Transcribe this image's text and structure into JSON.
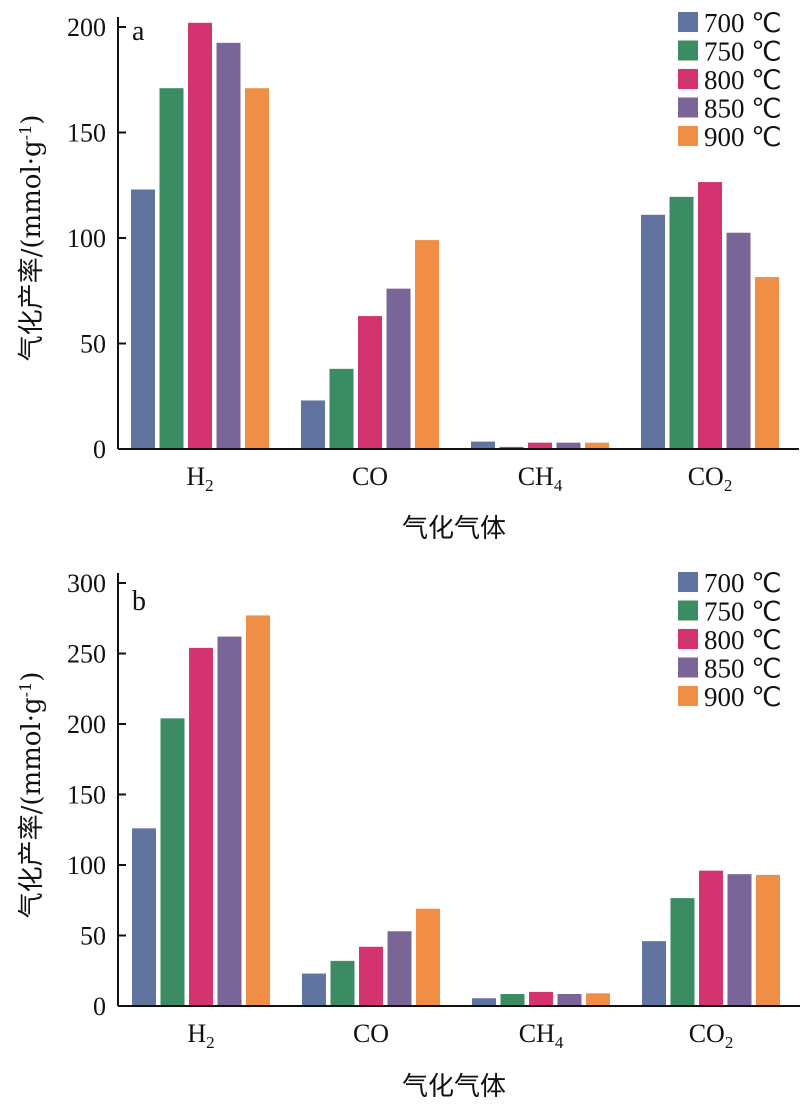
{
  "colors": {
    "700": "#61739f",
    "750": "#3b8c63",
    "800": "#d3346f",
    "850": "#7a6598",
    "900": "#ef8e44"
  },
  "chart_data": [
    {
      "type": "bar",
      "panel_label": "a",
      "categories": [
        "H2",
        "CO",
        "CH4",
        "CO2"
      ],
      "category_labels": [
        {
          "base": "H",
          "sub": "2"
        },
        {
          "base": "CO",
          "sub": ""
        },
        {
          "base": "CH",
          "sub": "4"
        },
        {
          "base": "CO",
          "sub": "2"
        }
      ],
      "series": [
        {
          "name": "700 ℃",
          "values": [
            123,
            23,
            3.5,
            111
          ]
        },
        {
          "name": "750 ℃",
          "values": [
            171,
            38,
            1,
            119.5
          ]
        },
        {
          "name": "800 ℃",
          "values": [
            202,
            63,
            3,
            126.5
          ]
        },
        {
          "name": "850 ℃",
          "values": [
            192.5,
            76,
            3,
            102.5
          ]
        },
        {
          "name": "900 ℃",
          "values": [
            171,
            99,
            3,
            81.5
          ]
        }
      ],
      "ylim": [
        0,
        200
      ],
      "yticks": [
        "0",
        "50",
        "100",
        "150",
        "200"
      ],
      "ytick_values": [
        0,
        50,
        100,
        150,
        200
      ],
      "ylabel_main": "气化产率/(mmol·g",
      "ylabel_sup": "-1",
      "ylabel_end": ")",
      "xlabel": "气化气体",
      "legend_position": "top-right",
      "grid": false
    },
    {
      "type": "bar",
      "panel_label": "b",
      "categories": [
        "H2",
        "CO",
        "CH4",
        "CO2"
      ],
      "category_labels": [
        {
          "base": "H",
          "sub": "2"
        },
        {
          "base": "CO",
          "sub": ""
        },
        {
          "base": "CH",
          "sub": "4"
        },
        {
          "base": "CO",
          "sub": "2"
        }
      ],
      "series": [
        {
          "name": "700 ℃",
          "values": [
            126,
            23,
            5.5,
            46
          ]
        },
        {
          "name": "750 ℃",
          "values": [
            204,
            32,
            8.5,
            76.5
          ]
        },
        {
          "name": "800 ℃",
          "values": [
            254,
            42,
            10,
            96
          ]
        },
        {
          "name": "850 ℃",
          "values": [
            262,
            53,
            8.5,
            93.5
          ]
        },
        {
          "name": "900 ℃",
          "values": [
            277,
            69,
            9,
            93
          ]
        }
      ],
      "ylim": [
        0,
        300
      ],
      "yticks": [
        "0",
        "50",
        "100",
        "150",
        "200",
        "250",
        "300"
      ],
      "ytick_values": [
        0,
        50,
        100,
        150,
        200,
        250,
        300
      ],
      "ylabel_main": "气化产率/(mmol·g",
      "ylabel_sup": "-1",
      "ylabel_end": ")",
      "xlabel": "气化气体",
      "legend_position": "top-right",
      "grid": false
    }
  ]
}
